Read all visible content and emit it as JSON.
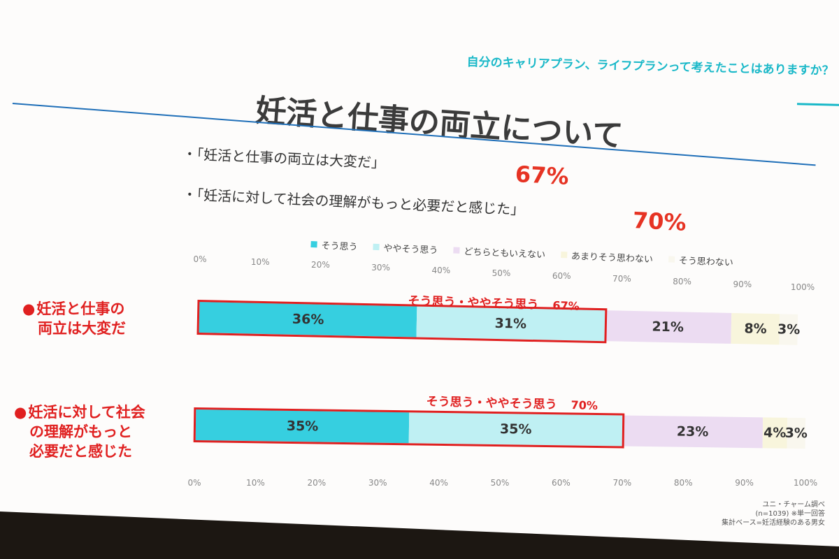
{
  "slide": {
    "question": "自分のキャリアプラン、ライフプランって考えたことはありますか？",
    "title": "妊活と仕事の両立について",
    "bullets": [
      {
        "text": "・「妊活と仕事の両立は大変だ」",
        "pct": "67%"
      },
      {
        "text": "・「妊活に対して社会の理解がもっと必要だと感じた」",
        "pct": "70%"
      }
    ],
    "source": [
      "ユニ・チャーム調べ",
      "(n=1039) ※単一回答",
      "集計ベース=妊活経験のある男女"
    ]
  },
  "chart_data": {
    "type": "bar",
    "orientation": "horizontal",
    "stacked": true,
    "xlim": [
      0,
      100
    ],
    "x_ticks": [
      "0%",
      "10%",
      "20%",
      "30%",
      "40%",
      "50%",
      "60%",
      "70%",
      "80%",
      "90%",
      "100%"
    ],
    "legend_position": "top",
    "series": [
      {
        "name": "そう思う",
        "color": "#36cfe0"
      },
      {
        "name": "ややそう思う",
        "color": "#bff0f3"
      },
      {
        "name": "どちらともいえない",
        "color": "#ecdcf2"
      },
      {
        "name": "あまりそう思わない",
        "color": "#f8f5dc"
      },
      {
        "name": "そう思わない",
        "color": "#f9f7ee"
      }
    ],
    "rows": [
      {
        "label": [
          "妊活と仕事の",
          "両立は大変だ"
        ],
        "values": [
          36,
          31,
          21,
          8,
          3
        ],
        "value_labels": [
          "36%",
          "31%",
          "21%",
          "8%",
          "3%"
        ],
        "highlight_label": "そう思う・ややそう思う",
        "highlight_pct": "67%"
      },
      {
        "label": [
          "妊活に対して社会",
          "の理解がもっと",
          "必要だと感じた"
        ],
        "values": [
          35,
          35,
          23,
          4,
          3
        ],
        "value_labels": [
          "35%",
          "35%",
          "23%",
          "4%",
          "3%"
        ],
        "highlight_label": "そう思う・ややそう思う",
        "highlight_pct": "70%"
      }
    ]
  }
}
